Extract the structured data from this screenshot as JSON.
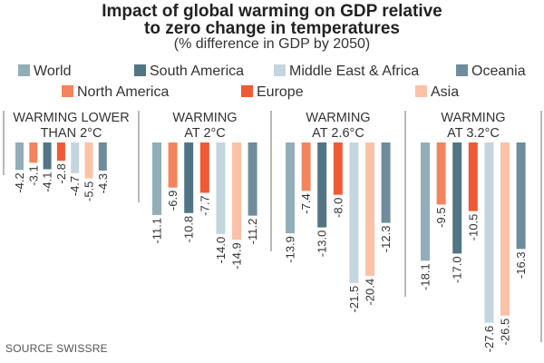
{
  "chart_data": {
    "type": "bar",
    "title": "Impact of global warming on GDP relative to zero change in temperatures",
    "title_lines": [
      "Impact of global warming on GDP relative",
      "to zero change in temperatures"
    ],
    "subtitle": "(% difference in GDP by 2050)",
    "xlabel": "",
    "ylabel": "% difference in GDP by 2050",
    "ylim": [
      -28,
      0
    ],
    "grid": false,
    "legend_position": "top",
    "series_order": [
      "World",
      "North America",
      "South America",
      "Europe",
      "Middle East & Africa",
      "Asia",
      "Oceania"
    ],
    "colors": {
      "World": "#93adb9",
      "North America": "#f5845e",
      "South America": "#527586",
      "Europe": "#ef5a35",
      "Middle East & Africa": "#c4d5df",
      "Asia": "#fcc2a8",
      "Oceania": "#6e8c9c"
    },
    "legend": {
      "row1": [
        "World",
        "South America",
        "Middle East & Africa",
        "Oceania"
      ],
      "row2": [
        "North America",
        "Europe",
        "Asia"
      ]
    },
    "categories": [
      {
        "title_lines": [
          "WARMING LOWER",
          "THAN 2°C"
        ],
        "values": [
          -4.2,
          -3.1,
          -4.1,
          -2.8,
          -4.7,
          -5.5,
          -4.3
        ],
        "labels": [
          "-4.2",
          "-3.1",
          "-4.1",
          "-2.8",
          "-4.7",
          "-5.5",
          "-4.3"
        ]
      },
      {
        "title_lines": [
          "WARMING",
          "AT 2°C"
        ],
        "values": [
          -11.1,
          -6.9,
          -10.8,
          -7.7,
          -14.0,
          -14.9,
          -11.2
        ],
        "labels": [
          "-11.1",
          "-6.9",
          "-10.8",
          "-7.7",
          "-14.0",
          "-14.9",
          "-11.2"
        ]
      },
      {
        "title_lines": [
          "WARMING",
          "AT 2.6°C"
        ],
        "values": [
          -13.9,
          -7.4,
          -13.0,
          -8.0,
          -21.5,
          -20.4,
          -12.3
        ],
        "labels": [
          "-13.9",
          "-7.4",
          "-13.0",
          "-8.0",
          "-21.5",
          "-20.4",
          "-12.3"
        ]
      },
      {
        "title_lines": [
          "WARMING",
          "AT 3.2°C"
        ],
        "values": [
          -18.1,
          -9.5,
          -17.0,
          -10.5,
          -27.6,
          -26.5,
          -16.3
        ],
        "labels": [
          "-18.1",
          "-9.5",
          "-17.0",
          "-10.5",
          "-27.6",
          "-26.5",
          "-16.3"
        ]
      }
    ],
    "source": "SOURCE SWISSRE"
  }
}
